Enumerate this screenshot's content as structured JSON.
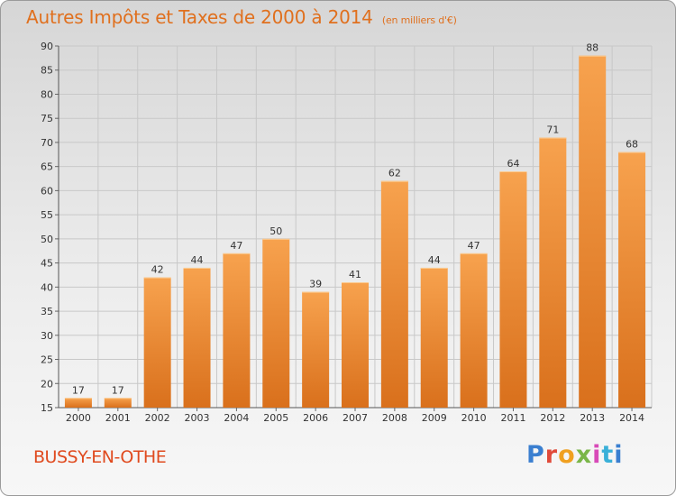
{
  "chart_data": {
    "type": "bar",
    "title": "Autres Impôts et Taxes de 2000 à 2014",
    "subtitle": "(en milliers d'€)",
    "categories": [
      "2000",
      "2001",
      "2002",
      "2003",
      "2004",
      "2005",
      "2006",
      "2007",
      "2008",
      "2009",
      "2010",
      "2011",
      "2012",
      "2013",
      "2014"
    ],
    "values": [
      17,
      17,
      42,
      44,
      47,
      50,
      39,
      41,
      62,
      44,
      47,
      64,
      71,
      88,
      68
    ],
    "ylim": [
      15,
      90
    ],
    "yticks": [
      15,
      20,
      25,
      30,
      35,
      40,
      45,
      50,
      55,
      60,
      65,
      70,
      75,
      80,
      85,
      90
    ],
    "grid": true,
    "bar_color_top": "#f7a24e",
    "bar_color_bottom": "#d9701c"
  },
  "footer": {
    "commune": "BUSSY-EN-OTHE",
    "logo": "Proxiti"
  }
}
